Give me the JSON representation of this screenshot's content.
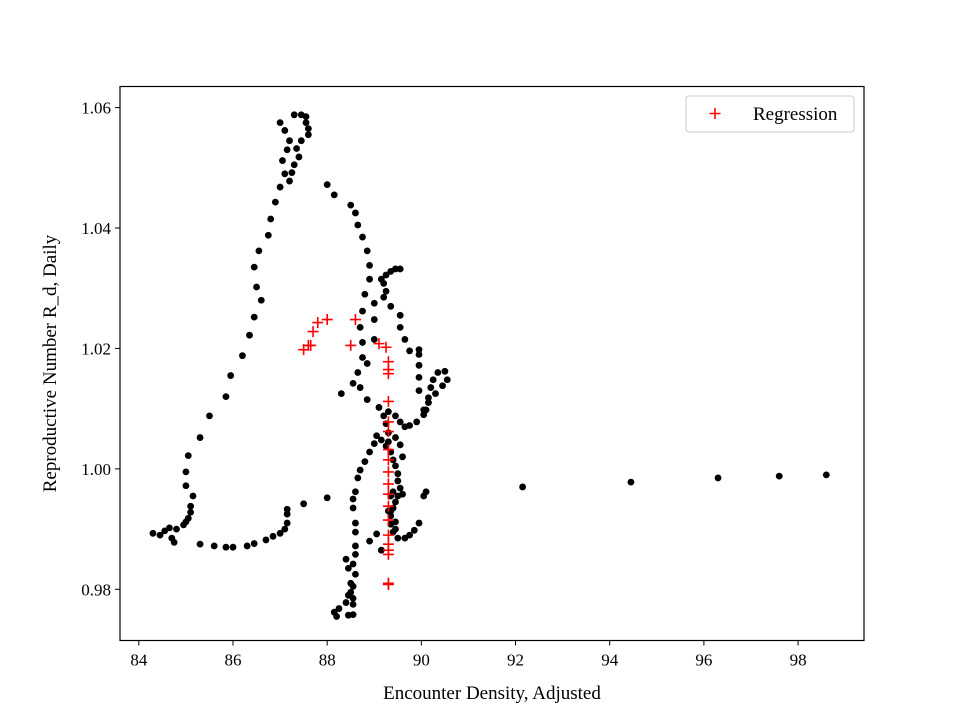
{
  "chart_data": {
    "type": "scatter",
    "title": "",
    "xlabel": "Encounter Density, Adjusted",
    "ylabel": "Reproductive Number R_d, Daily",
    "xlim": [
      83.6,
      99.4
    ],
    "ylim": [
      0.9715,
      1.0635
    ],
    "xticks": [
      84,
      86,
      88,
      90,
      92,
      94,
      96,
      98
    ],
    "xtick_labels": [
      "84",
      "86",
      "88",
      "90",
      "92",
      "94",
      "96",
      "98"
    ],
    "yticks": [
      0.98,
      1.0,
      1.02,
      1.04,
      1.06
    ],
    "ytick_labels": [
      "0.98",
      "1.00",
      "1.02",
      "1.04",
      "1.06"
    ],
    "grid": false,
    "legend_position": "top-right",
    "legend": [
      "Regression"
    ],
    "colors": {
      "observed": "#000000",
      "regression": "#ff0000"
    },
    "series": [
      {
        "marker": "dot",
        "color": "#000000",
        "points": [
          [
            84.3,
            0.9893
          ],
          [
            84.45,
            0.989
          ],
          [
            84.55,
            0.9897
          ],
          [
            84.65,
            0.9902
          ],
          [
            84.7,
            0.9885
          ],
          [
            84.75,
            0.9878
          ],
          [
            84.8,
            0.99
          ],
          [
            84.95,
            0.9907
          ],
          [
            85.0,
            0.9912
          ],
          [
            85.05,
            0.9918
          ],
          [
            85.1,
            0.9928
          ],
          [
            85.1,
            0.9938
          ],
          [
            85.15,
            0.9955
          ],
          [
            85.0,
            0.9972
          ],
          [
            85.0,
            0.9995
          ],
          [
            85.05,
            1.0022
          ],
          [
            85.3,
            1.0052
          ],
          [
            85.5,
            1.0088
          ],
          [
            85.85,
            1.012
          ],
          [
            85.95,
            1.0155
          ],
          [
            86.2,
            1.0188
          ],
          [
            86.35,
            1.0222
          ],
          [
            86.45,
            1.0252
          ],
          [
            86.6,
            1.028
          ],
          [
            86.5,
            1.0302
          ],
          [
            86.45,
            1.0335
          ],
          [
            86.55,
            1.0362
          ],
          [
            86.75,
            1.0388
          ],
          [
            86.8,
            1.0415
          ],
          [
            86.9,
            1.0443
          ],
          [
            87.0,
            1.0468
          ],
          [
            87.1,
            1.049
          ],
          [
            87.05,
            1.0512
          ],
          [
            87.15,
            1.053
          ],
          [
            87.2,
            1.0545
          ],
          [
            87.1,
            1.0562
          ],
          [
            87.0,
            1.0575
          ],
          [
            87.3,
            1.0588
          ],
          [
            87.45,
            1.0588
          ],
          [
            87.55,
            1.0585
          ],
          [
            87.55,
            1.0575
          ],
          [
            87.6,
            1.0565
          ],
          [
            87.6,
            1.0555
          ],
          [
            87.45,
            1.0545
          ],
          [
            87.35,
            1.0532
          ],
          [
            87.4,
            1.0518
          ],
          [
            87.3,
            1.0505
          ],
          [
            87.25,
            1.0492
          ],
          [
            87.2,
            1.0478
          ],
          [
            85.3,
            0.9875
          ],
          [
            85.6,
            0.9872
          ],
          [
            85.85,
            0.987
          ],
          [
            86.0,
            0.987
          ],
          [
            86.3,
            0.9872
          ],
          [
            86.45,
            0.9876
          ],
          [
            86.7,
            0.9882
          ],
          [
            86.85,
            0.9888
          ],
          [
            87.0,
            0.9893
          ],
          [
            87.1,
            0.99
          ],
          [
            87.15,
            0.991
          ],
          [
            87.15,
            0.9925
          ],
          [
            87.15,
            0.9933
          ],
          [
            87.5,
            0.9942
          ],
          [
            88.0,
            0.9952
          ],
          [
            88.0,
            1.0472
          ],
          [
            88.15,
            1.0455
          ],
          [
            88.5,
            1.0438
          ],
          [
            88.6,
            1.0425
          ],
          [
            88.65,
            1.0405
          ],
          [
            88.75,
            1.0385
          ],
          [
            88.85,
            1.0362
          ],
          [
            88.9,
            1.0338
          ],
          [
            88.9,
            1.0315
          ],
          [
            88.8,
            1.029
          ],
          [
            88.75,
            1.0262
          ],
          [
            88.7,
            1.0235
          ],
          [
            88.75,
            1.021
          ],
          [
            88.75,
            1.0185
          ],
          [
            88.65,
            1.016
          ],
          [
            88.7,
            1.0135
          ],
          [
            88.85,
            1.0115
          ],
          [
            89.1,
            1.0102
          ],
          [
            89.3,
            1.0095
          ],
          [
            89.45,
            1.0088
          ],
          [
            89.55,
            1.0078
          ],
          [
            89.65,
            1.007
          ],
          [
            89.75,
            1.0072
          ],
          [
            89.9,
            1.0078
          ],
          [
            90.05,
            1.009
          ],
          [
            90.1,
            1.0098
          ],
          [
            90.15,
            1.0118
          ],
          [
            90.2,
            1.0135
          ],
          [
            90.25,
            1.0148
          ],
          [
            90.35,
            1.016
          ],
          [
            90.5,
            1.0162
          ],
          [
            90.55,
            1.0148
          ],
          [
            90.45,
            1.0138
          ],
          [
            90.3,
            1.0125
          ],
          [
            90.15,
            1.011
          ],
          [
            90.05,
            1.0098
          ],
          [
            89.95,
            1.013
          ],
          [
            89.95,
            1.0152
          ],
          [
            89.95,
            1.0172
          ],
          [
            89.95,
            1.019
          ],
          [
            89.95,
            1.0198
          ],
          [
            89.75,
            1.0196
          ],
          [
            89.65,
            1.0215
          ],
          [
            89.55,
            1.0235
          ],
          [
            89.55,
            1.0255
          ],
          [
            89.35,
            1.027
          ],
          [
            89.2,
            1.0285
          ],
          [
            89.25,
            1.0295
          ],
          [
            89.2,
            1.0308
          ],
          [
            89.25,
            1.0322
          ],
          [
            89.35,
            1.0328
          ],
          [
            89.45,
            1.0332
          ],
          [
            89.55,
            1.0332
          ],
          [
            89.15,
            1.0315
          ],
          [
            89.0,
            1.0275
          ],
          [
            89.0,
            1.0248
          ],
          [
            89.0,
            1.0215
          ],
          [
            88.85,
            1.0175
          ],
          [
            88.55,
            1.0142
          ],
          [
            88.3,
            1.0125
          ],
          [
            88.15,
            0.9762
          ],
          [
            88.25,
            0.9768
          ],
          [
            88.4,
            0.9778
          ],
          [
            88.45,
            0.979
          ],
          [
            88.55,
            0.9805
          ],
          [
            88.6,
            0.9825
          ],
          [
            88.55,
            0.9842
          ],
          [
            88.6,
            0.9858
          ],
          [
            88.6,
            0.9872
          ],
          [
            88.6,
            0.9895
          ],
          [
            88.6,
            0.991
          ],
          [
            88.55,
            0.9935
          ],
          [
            88.55,
            0.995
          ],
          [
            88.6,
            0.9962
          ],
          [
            88.65,
            0.9985
          ],
          [
            88.7,
            0.9998
          ],
          [
            88.8,
            1.0012
          ],
          [
            88.9,
            1.0028
          ],
          [
            89.0,
            1.0042
          ],
          [
            89.05,
            1.0055
          ],
          [
            89.15,
            1.0048
          ],
          [
            89.25,
            1.0038
          ],
          [
            89.35,
            1.0028
          ],
          [
            89.4,
            1.0015
          ],
          [
            89.45,
            1.0005
          ],
          [
            89.5,
            0.9992
          ],
          [
            89.5,
            0.998
          ],
          [
            89.55,
            0.9968
          ],
          [
            89.5,
            0.9955
          ],
          [
            89.45,
            0.9945
          ],
          [
            89.4,
            0.9935
          ],
          [
            89.35,
            0.9922
          ],
          [
            89.35,
            0.9908
          ],
          [
            89.4,
            0.9895
          ],
          [
            89.5,
            0.9885
          ],
          [
            89.65,
            0.9885
          ],
          [
            89.75,
            0.989
          ],
          [
            89.85,
            0.9898
          ],
          [
            89.95,
            0.991
          ],
          [
            90.05,
            0.9955
          ],
          [
            90.1,
            0.9962
          ],
          [
            88.2,
            0.9755
          ],
          [
            88.45,
            0.9757
          ],
          [
            88.55,
            0.9758
          ],
          [
            88.55,
            0.9775
          ],
          [
            88.55,
            0.9785
          ],
          [
            88.5,
            0.9795
          ],
          [
            88.5,
            0.981
          ],
          [
            88.45,
            0.9835
          ],
          [
            88.4,
            0.985
          ],
          [
            88.9,
            0.988
          ],
          [
            89.15,
            0.9865
          ],
          [
            89.05,
            0.9892
          ],
          [
            89.3,
            0.993
          ],
          [
            89.6,
            1.002
          ],
          [
            89.55,
            1.004
          ],
          [
            89.45,
            1.0052
          ],
          [
            89.3,
            1.006
          ],
          [
            89.25,
            1.0075
          ],
          [
            89.2,
            1.0088
          ],
          [
            89.3,
            1.0045
          ],
          [
            89.4,
            0.9962
          ],
          [
            89.35,
            0.9955
          ],
          [
            89.35,
            0.993
          ],
          [
            89.45,
            0.9912
          ],
          [
            89.45,
            0.99
          ],
          [
            89.6,
            0.9958
          ],
          [
            92.15,
            0.997
          ],
          [
            94.45,
            0.9978
          ],
          [
            96.3,
            0.9985
          ],
          [
            97.6,
            0.9988
          ],
          [
            98.6,
            0.999
          ]
        ]
      },
      {
        "name": "Regression",
        "marker": "plus",
        "color": "#ff0000",
        "points": [
          [
            87.5,
            1.0198
          ],
          [
            87.6,
            1.0205
          ],
          [
            87.65,
            1.0205
          ],
          [
            87.7,
            1.0228
          ],
          [
            87.8,
            1.0243
          ],
          [
            88.0,
            1.0248
          ],
          [
            88.5,
            1.0205
          ],
          [
            88.6,
            1.0248
          ],
          [
            89.1,
            1.0208
          ],
          [
            89.25,
            1.0202
          ],
          [
            89.3,
            1.0178
          ],
          [
            89.3,
            1.0165
          ],
          [
            89.3,
            1.0158
          ],
          [
            89.3,
            1.0112
          ],
          [
            89.3,
            1.0078
          ],
          [
            89.3,
            1.0062
          ],
          [
            89.3,
            1.0032
          ],
          [
            89.3,
            1.0015
          ],
          [
            89.3,
            0.9995
          ],
          [
            89.3,
            0.9975
          ],
          [
            89.3,
            0.9958
          ],
          [
            89.3,
            0.9938
          ],
          [
            89.3,
            0.9915
          ],
          [
            89.3,
            0.989
          ],
          [
            89.3,
            0.9875
          ],
          [
            89.3,
            0.9865
          ],
          [
            89.3,
            0.9858
          ],
          [
            89.3,
            0.981
          ],
          [
            89.3,
            0.9808
          ]
        ]
      }
    ]
  }
}
